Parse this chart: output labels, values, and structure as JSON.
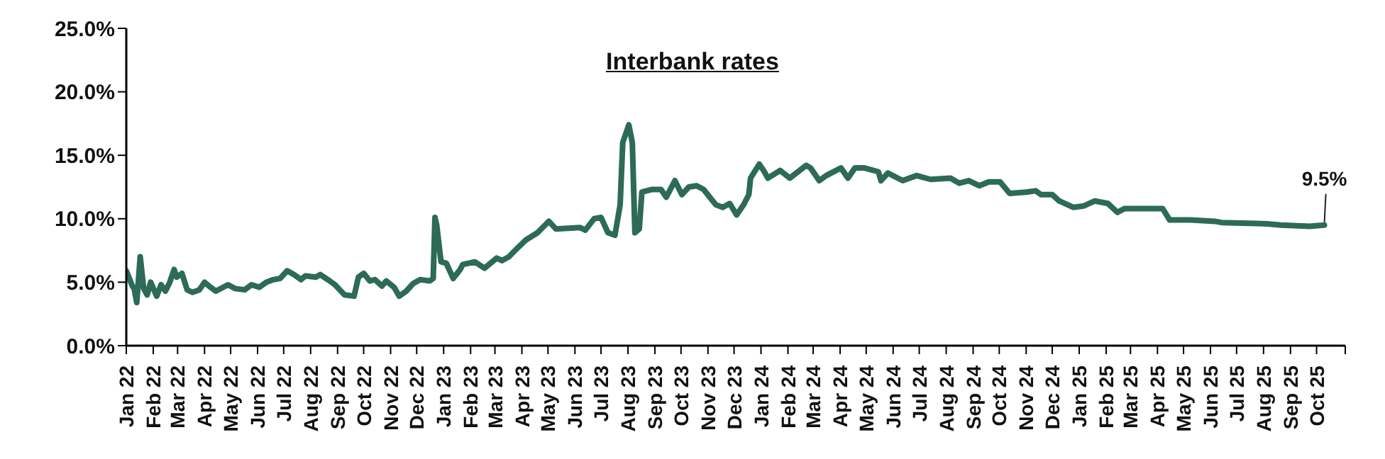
{
  "chart_data": {
    "type": "line",
    "title": "Interbank rates",
    "x": [
      "2022-01-01",
      "2022-01-08",
      "2022-01-10",
      "2022-01-13",
      "2022-01-17",
      "2022-01-21",
      "2022-01-25",
      "2022-01-29",
      "2022-02-05",
      "2022-02-10",
      "2022-02-15",
      "2022-02-20",
      "2022-02-25",
      "2022-02-28",
      "2022-03-06",
      "2022-03-12",
      "2022-03-18",
      "2022-03-26",
      "2022-04-01",
      "2022-04-06",
      "2022-04-14",
      "2022-04-28",
      "2022-05-06",
      "2022-05-17",
      "2022-05-25",
      "2022-06-03",
      "2022-06-11",
      "2022-06-19",
      "2022-06-27",
      "2022-07-05",
      "2022-07-13",
      "2022-07-21",
      "2022-07-26",
      "2022-08-07",
      "2022-08-12",
      "2022-08-23",
      "2022-08-29",
      "2022-09-09",
      "2022-09-20",
      "2022-09-25",
      "2022-10-01",
      "2022-10-08",
      "2022-10-14",
      "2022-10-22",
      "2022-10-27",
      "2022-11-05",
      "2022-11-11",
      "2022-11-19",
      "2022-11-27",
      "2022-12-05",
      "2022-12-16",
      "2022-12-20",
      "2022-12-22",
      "2022-12-24",
      "2022-12-29",
      "2023-01-04",
      "2023-01-12",
      "2023-01-20",
      "2023-01-23",
      "2023-02-06",
      "2023-02-17",
      "2023-03-03",
      "2023-03-09",
      "2023-03-17",
      "2023-03-27",
      "2023-04-05",
      "2023-04-19",
      "2023-05-02",
      "2023-05-10",
      "2023-06-07",
      "2023-06-13",
      "2023-06-23",
      "2023-07-01",
      "2023-07-09",
      "2023-07-17",
      "2023-07-23",
      "2023-07-26",
      "2023-08-02",
      "2023-08-06",
      "2023-08-09",
      "2023-08-14",
      "2023-08-17",
      "2023-08-28",
      "2023-09-08",
      "2023-09-14",
      "2023-09-24",
      "2023-10-02",
      "2023-10-10",
      "2023-10-19",
      "2023-10-27",
      "2023-11-10",
      "2023-11-18",
      "2023-11-26",
      "2023-12-04",
      "2023-12-12",
      "2023-12-18",
      "2023-12-20",
      "2023-12-30",
      "2024-01-04",
      "2024-01-09",
      "2024-01-23",
      "2024-02-03",
      "2024-02-22",
      "2024-02-27",
      "2024-03-08",
      "2024-03-16",
      "2024-04-02",
      "2024-04-10",
      "2024-04-18",
      "2024-04-29",
      "2024-05-15",
      "2024-05-18",
      "2024-05-26",
      "2024-06-12",
      "2024-06-28",
      "2024-07-14",
      "2024-08-06",
      "2024-08-16",
      "2024-08-27",
      "2024-09-08",
      "2024-09-19",
      "2024-10-02",
      "2024-10-13",
      "2024-11-01",
      "2024-11-12",
      "2024-11-18",
      "2024-12-01",
      "2024-12-09",
      "2024-12-25",
      "2025-01-06",
      "2025-01-19",
      "2025-02-03",
      "2025-02-14",
      "2025-02-22",
      "2025-04-07",
      "2025-04-15",
      "2025-05-09",
      "2025-06-06",
      "2025-06-14",
      "2025-08-05",
      "2025-08-21",
      "2025-09-23",
      "2025-10-10"
    ],
    "values": [
      5.9,
      4.7,
      4.5,
      3.4,
      7.0,
      4.5,
      4.0,
      5.0,
      3.9,
      4.8,
      4.3,
      5.0,
      6.0,
      5.4,
      5.7,
      4.4,
      4.2,
      4.4,
      5.0,
      4.7,
      4.3,
      4.8,
      4.5,
      4.4,
      4.8,
      4.6,
      5.0,
      5.2,
      5.3,
      5.9,
      5.6,
      5.2,
      5.5,
      5.4,
      5.6,
      5.1,
      4.8,
      4.0,
      3.9,
      5.4,
      5.7,
      5.1,
      5.2,
      4.7,
      5.1,
      4.6,
      3.9,
      4.3,
      4.9,
      5.2,
      5.1,
      5.3,
      10.1,
      9.5,
      6.6,
      6.5,
      5.3,
      6.0,
      6.4,
      6.6,
      6.1,
      6.9,
      6.7,
      7.0,
      7.7,
      8.3,
      8.9,
      9.8,
      9.2,
      9.3,
      9.1,
      10.0,
      10.1,
      8.9,
      8.7,
      11.1,
      16.0,
      17.4,
      16.0,
      8.9,
      9.2,
      12.1,
      12.3,
      12.3,
      11.7,
      13.0,
      11.9,
      12.5,
      12.6,
      12.3,
      11.1,
      10.9,
      11.2,
      10.3,
      11.1,
      11.9,
      13.2,
      14.3,
      13.8,
      13.2,
      13.8,
      13.2,
      14.2,
      14.0,
      13.0,
      13.4,
      14.0,
      13.2,
      14.0,
      14.0,
      13.7,
      13.0,
      13.6,
      13.0,
      13.4,
      13.1,
      13.2,
      12.8,
      13.0,
      12.6,
      12.9,
      12.9,
      12.0,
      12.1,
      12.2,
      11.9,
      11.9,
      11.4,
      10.9,
      11.0,
      11.4,
      11.2,
      10.5,
      10.8,
      10.8,
      9.9,
      9.9,
      9.8,
      9.7,
      9.6,
      9.5,
      9.4,
      9.5
    ],
    "color": "#2d6a58",
    "marker": "none",
    "line_style": "solid",
    "xlim": [
      "2022-01-01",
      "2025-11-03"
    ],
    "xticks": [
      {
        "value": "2022-01-01",
        "label": "Jan 22"
      },
      {
        "value": "2022-02-01",
        "label": "Feb 22"
      },
      {
        "value": "2022-03-01",
        "label": "Mar 22"
      },
      {
        "value": "2022-04-01",
        "label": "Apr 22"
      },
      {
        "value": "2022-05-01",
        "label": "May 22"
      },
      {
        "value": "2022-06-01",
        "label": "Jun 22"
      },
      {
        "value": "2022-07-01",
        "label": "Jul 22"
      },
      {
        "value": "2022-08-01",
        "label": "Aug 22"
      },
      {
        "value": "2022-09-01",
        "label": "Sep 22"
      },
      {
        "value": "2022-10-01",
        "label": "Oct 22"
      },
      {
        "value": "2022-11-01",
        "label": "Nov 22"
      },
      {
        "value": "2022-12-01",
        "label": "Dec 22"
      },
      {
        "value": "2023-01-01",
        "label": "Jan 23"
      },
      {
        "value": "2023-02-01",
        "label": "Feb 23"
      },
      {
        "value": "2023-03-01",
        "label": "Mar 23"
      },
      {
        "value": "2023-04-01",
        "label": "Apr 23"
      },
      {
        "value": "2023-05-01",
        "label": "May 23"
      },
      {
        "value": "2023-06-01",
        "label": "Jun 23"
      },
      {
        "value": "2023-07-01",
        "label": "Jul 23"
      },
      {
        "value": "2023-08-01",
        "label": "Aug 23"
      },
      {
        "value": "2023-09-01",
        "label": "Sep 23"
      },
      {
        "value": "2023-10-01",
        "label": "Oct 23"
      },
      {
        "value": "2023-11-01",
        "label": "Nov 23"
      },
      {
        "value": "2023-12-01",
        "label": "Dec 23"
      },
      {
        "value": "2024-01-01",
        "label": "Jan 24"
      },
      {
        "value": "2024-02-01",
        "label": "Feb 24"
      },
      {
        "value": "2024-03-01",
        "label": "Mar 24"
      },
      {
        "value": "2024-04-01",
        "label": "Apr 24"
      },
      {
        "value": "2024-05-01",
        "label": "May 24"
      },
      {
        "value": "2024-06-01",
        "label": "Jun 24"
      },
      {
        "value": "2024-07-01",
        "label": "Jul 24"
      },
      {
        "value": "2024-08-01",
        "label": "Aug 24"
      },
      {
        "value": "2024-09-01",
        "label": "Sep 24"
      },
      {
        "value": "2024-10-01",
        "label": "Oct 24"
      },
      {
        "value": "2024-11-01",
        "label": "Nov 24"
      },
      {
        "value": "2024-12-01",
        "label": "Dec 24"
      },
      {
        "value": "2025-01-01",
        "label": "Jan 25"
      },
      {
        "value": "2025-02-01",
        "label": "Feb 25"
      },
      {
        "value": "2025-03-01",
        "label": "Mar 25"
      },
      {
        "value": "2025-04-01",
        "label": "Apr 25"
      },
      {
        "value": "2025-05-01",
        "label": "May 25"
      },
      {
        "value": "2025-06-01",
        "label": "Jun 25"
      },
      {
        "value": "2025-07-01",
        "label": "Jul 25"
      },
      {
        "value": "2025-08-01",
        "label": "Aug 25"
      },
      {
        "value": "2025-09-01",
        "label": "Sep 25"
      },
      {
        "value": "2025-10-01",
        "label": "Oct 25"
      },
      {
        "value": "2025-11-03",
        "label": null
      }
    ],
    "ylim": [
      0,
      25
    ],
    "yticks": [
      {
        "value": 0,
        "label": "0.0%"
      },
      {
        "value": 5,
        "label": "5.0%"
      },
      {
        "value": 10,
        "label": "10.0%"
      },
      {
        "value": 15,
        "label": "15.0%"
      },
      {
        "value": 20,
        "label": "20.0%"
      },
      {
        "value": 25,
        "label": "25.0%"
      }
    ],
    "annotations": [
      {
        "text": "9.5%",
        "x": "2025-10-10",
        "y": 9.5
      }
    ]
  }
}
